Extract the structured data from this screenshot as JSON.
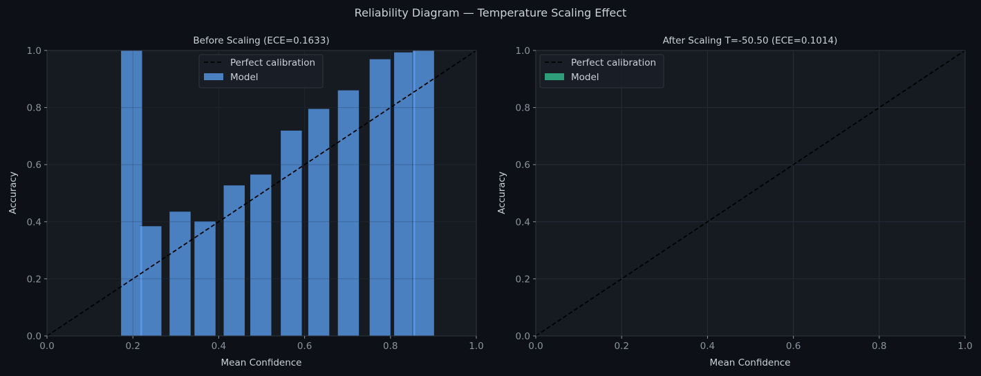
{
  "figure": {
    "title": "Reliability Diagram — Temperature Scaling Effect"
  },
  "colors": {
    "figure_bg": "#0d1117",
    "axes_bg": "#161b22",
    "grid": "#262d36",
    "spine": "#30363d",
    "text": "#c9d1d9",
    "tick_text": "#8b949e",
    "diagonal": "#000000",
    "before_bar": "#4a7fc0",
    "before_highlight": "#5b9bea",
    "after_bar": "#2e9e7a"
  },
  "chart_data": [
    {
      "type": "bar",
      "title": "Before Scaling (ECE=0.1633)",
      "xlabel": "Mean Confidence",
      "ylabel": "Accuracy",
      "xlim": [
        0,
        1
      ],
      "ylim": [
        0,
        1
      ],
      "xticks": [
        "0.0",
        "0.2",
        "0.4",
        "0.6",
        "0.8",
        "1.0"
      ],
      "yticks": [
        "0.0",
        "0.2",
        "0.4",
        "0.6",
        "0.8",
        "1.0"
      ],
      "grid": true,
      "legend": {
        "position": "top-center",
        "entries": [
          "Perfect calibration",
          "Model"
        ]
      },
      "reference_line": {
        "name": "Perfect calibration",
        "x": [
          0,
          1
        ],
        "y": [
          0,
          1
        ],
        "style": "dashed"
      },
      "series": [
        {
          "name": "Model",
          "bars": [
            {
              "center": 0.197,
              "width": 0.05,
              "value": 1.0
            },
            {
              "center": 0.242,
              "width": 0.05,
              "value": 0.385
            },
            {
              "center": 0.31,
              "width": 0.05,
              "value": 0.436
            },
            {
              "center": 0.368,
              "width": 0.05,
              "value": 0.402
            },
            {
              "center": 0.436,
              "width": 0.05,
              "value": 0.528
            },
            {
              "center": 0.498,
              "width": 0.05,
              "value": 0.566
            },
            {
              "center": 0.569,
              "width": 0.05,
              "value": 0.72
            },
            {
              "center": 0.633,
              "width": 0.05,
              "value": 0.796
            },
            {
              "center": 0.702,
              "width": 0.05,
              "value": 0.861
            },
            {
              "center": 0.776,
              "width": 0.05,
              "value": 0.97
            },
            {
              "center": 0.833,
              "width": 0.05,
              "value": 0.994
            },
            {
              "center": 0.877,
              "width": 0.05,
              "value": 1.0
            }
          ]
        }
      ],
      "highlight_markers": [
        {
          "x": 0.219,
          "value": 0.385
        },
        {
          "x": 0.855,
          "value": 1.0
        }
      ]
    },
    {
      "type": "bar",
      "title": "After Scaling T=-50.50 (ECE=0.1014)",
      "xlabel": "Mean Confidence",
      "ylabel": "Accuracy",
      "xlim": [
        0,
        1
      ],
      "ylim": [
        0,
        1
      ],
      "xticks": [
        "0.0",
        "0.2",
        "0.4",
        "0.6",
        "0.8",
        "1.0"
      ],
      "yticks": [
        "0.0",
        "0.2",
        "0.4",
        "0.6",
        "0.8",
        "1.0"
      ],
      "grid": true,
      "legend": {
        "position": "top-left",
        "entries": [
          "Perfect calibration",
          "Model"
        ]
      },
      "reference_line": {
        "name": "Perfect calibration",
        "x": [
          0,
          1
        ],
        "y": [
          0,
          1
        ],
        "style": "dashed"
      },
      "series": [
        {
          "name": "Model",
          "bars": []
        }
      ],
      "highlight_markers": []
    }
  ]
}
